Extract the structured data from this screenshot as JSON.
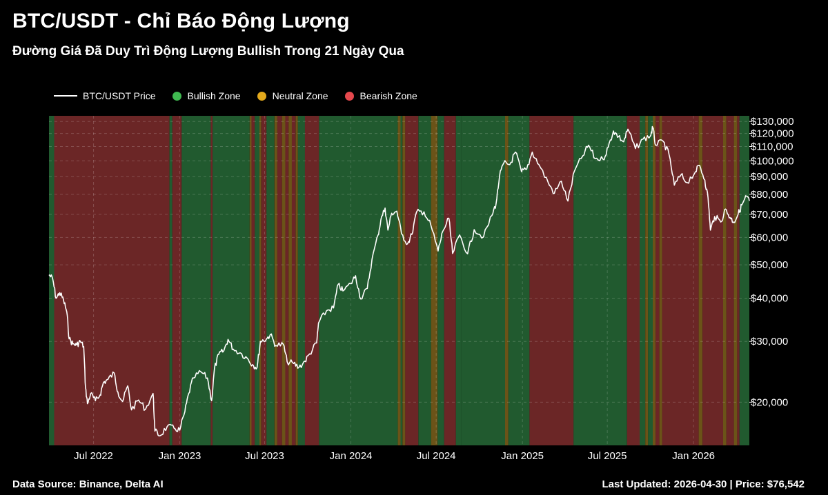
{
  "header": {
    "title": "BTC/USDT - Chỉ Báo Động Lượng",
    "subtitle": "Đường Giá Đã Duy Trì Động Lượng Bullish Trong 21 Ngày Qua"
  },
  "footer": {
    "source": "Data Source: Binance, Delta AI",
    "updated": "Last Updated: 2026-04-30 | Price: $76,542"
  },
  "chart_data": {
    "type": "line",
    "title": "BTC/USDT - Chỉ Báo Động Lượng",
    "subtitle": "Đường Giá Đã Duy Trì Động Lượng Bullish Trong 21 Ngày Qua",
    "y_scale": "log",
    "ylim": [
      15000,
      135000
    ],
    "xlim": [
      "2022-03-28",
      "2026-04-30"
    ],
    "grid": true,
    "legend_position": "top-left",
    "legend": [
      {
        "label": "BTC/USDT Price",
        "kind": "line",
        "color": "#ffffff"
      },
      {
        "label": "Bullish Zone",
        "kind": "dot",
        "color": "#3fb950"
      },
      {
        "label": "Neutral Zone",
        "kind": "dot",
        "color": "#e3a91c"
      },
      {
        "label": "Bearish Zone",
        "kind": "dot",
        "color": "#e5484d"
      }
    ],
    "zone_colors": {
      "bullish": "#215a2f",
      "neutral": "#6b5318",
      "bearish": "#6b2626"
    },
    "x_ticks": [
      {
        "date": "2022-07-01",
        "label": "Jul 2022"
      },
      {
        "date": "2023-01-01",
        "label": "Jan 2023"
      },
      {
        "date": "2023-07-01",
        "label": "Jul 2023"
      },
      {
        "date": "2024-01-01",
        "label": "Jan 2024"
      },
      {
        "date": "2024-07-01",
        "label": "Jul 2024"
      },
      {
        "date": "2025-01-01",
        "label": "Jan 2025"
      },
      {
        "date": "2025-07-01",
        "label": "Jul 2025"
      },
      {
        "date": "2026-01-01",
        "label": "Jan 2026"
      }
    ],
    "y_ticks": [
      {
        "value": 20000,
        "label": "$20,000"
      },
      {
        "value": 30000,
        "label": "$30,000"
      },
      {
        "value": 40000,
        "label": "$40,000"
      },
      {
        "value": 50000,
        "label": "$50,000"
      },
      {
        "value": 60000,
        "label": "$60,000"
      },
      {
        "value": 70000,
        "label": "$70,000"
      },
      {
        "value": 80000,
        "label": "$80,000"
      },
      {
        "value": 90000,
        "label": "$90,000"
      },
      {
        "value": 100000,
        "label": "$100,000"
      },
      {
        "value": 110000,
        "label": "$110,000"
      },
      {
        "value": 120000,
        "label": "$120,000"
      },
      {
        "value": 130000,
        "label": "$130,000"
      }
    ],
    "zones": [
      {
        "start": "2022-03-28",
        "end": "2022-04-08",
        "zone": "bullish"
      },
      {
        "start": "2022-04-08",
        "end": "2022-12-10",
        "zone": "bearish"
      },
      {
        "start": "2022-12-10",
        "end": "2022-12-16",
        "zone": "bullish"
      },
      {
        "start": "2022-12-16",
        "end": "2023-01-05",
        "zone": "bearish"
      },
      {
        "start": "2023-01-05",
        "end": "2023-03-08",
        "zone": "bullish"
      },
      {
        "start": "2023-03-08",
        "end": "2023-03-12",
        "zone": "bearish"
      },
      {
        "start": "2023-03-12",
        "end": "2023-05-30",
        "zone": "bullish"
      },
      {
        "start": "2023-05-30",
        "end": "2023-06-03",
        "zone": "neutral"
      },
      {
        "start": "2023-06-03",
        "end": "2023-06-10",
        "zone": "bearish"
      },
      {
        "start": "2023-06-10",
        "end": "2023-06-20",
        "zone": "bullish"
      },
      {
        "start": "2023-06-20",
        "end": "2023-06-24",
        "zone": "neutral"
      },
      {
        "start": "2023-06-24",
        "end": "2023-07-05",
        "zone": "bearish"
      },
      {
        "start": "2023-07-05",
        "end": "2023-07-22",
        "zone": "bullish"
      },
      {
        "start": "2023-07-22",
        "end": "2023-07-28",
        "zone": "neutral"
      },
      {
        "start": "2023-07-28",
        "end": "2023-08-07",
        "zone": "bearish"
      },
      {
        "start": "2023-08-07",
        "end": "2023-08-14",
        "zone": "neutral"
      },
      {
        "start": "2023-08-14",
        "end": "2023-08-21",
        "zone": "bearish"
      },
      {
        "start": "2023-08-21",
        "end": "2023-08-28",
        "zone": "neutral"
      },
      {
        "start": "2023-08-28",
        "end": "2023-09-05",
        "zone": "bearish"
      },
      {
        "start": "2023-09-05",
        "end": "2023-09-10",
        "zone": "neutral"
      },
      {
        "start": "2023-09-10",
        "end": "2023-09-25",
        "zone": "bullish"
      },
      {
        "start": "2023-09-25",
        "end": "2023-10-25",
        "zone": "bearish"
      },
      {
        "start": "2023-10-25",
        "end": "2024-04-10",
        "zone": "bullish"
      },
      {
        "start": "2024-04-10",
        "end": "2024-04-16",
        "zone": "neutral"
      },
      {
        "start": "2024-04-16",
        "end": "2024-04-20",
        "zone": "bullish"
      },
      {
        "start": "2024-04-20",
        "end": "2024-04-26",
        "zone": "neutral"
      },
      {
        "start": "2024-04-26",
        "end": "2024-05-24",
        "zone": "bearish"
      },
      {
        "start": "2024-05-24",
        "end": "2024-06-20",
        "zone": "bullish"
      },
      {
        "start": "2024-06-20",
        "end": "2024-07-04",
        "zone": "neutral"
      },
      {
        "start": "2024-07-04",
        "end": "2024-07-18",
        "zone": "bullish"
      },
      {
        "start": "2024-07-18",
        "end": "2024-08-12",
        "zone": "bearish"
      },
      {
        "start": "2024-08-12",
        "end": "2024-08-24",
        "zone": "bullish"
      },
      {
        "start": "2024-08-24",
        "end": "2024-11-25",
        "zone": "bullish"
      },
      {
        "start": "2024-11-25",
        "end": "2024-12-02",
        "zone": "neutral"
      },
      {
        "start": "2024-12-02",
        "end": "2025-01-16",
        "zone": "bullish"
      },
      {
        "start": "2025-01-16",
        "end": "2025-04-20",
        "zone": "bearish"
      },
      {
        "start": "2025-04-20",
        "end": "2025-08-12",
        "zone": "bullish"
      },
      {
        "start": "2025-08-12",
        "end": "2025-09-08",
        "zone": "bearish"
      },
      {
        "start": "2025-09-08",
        "end": "2025-09-20",
        "zone": "bullish"
      },
      {
        "start": "2025-09-20",
        "end": "2025-09-26",
        "zone": "neutral"
      },
      {
        "start": "2025-09-26",
        "end": "2025-10-06",
        "zone": "bullish"
      },
      {
        "start": "2025-10-06",
        "end": "2025-10-12",
        "zone": "neutral"
      },
      {
        "start": "2025-10-12",
        "end": "2025-10-20",
        "zone": "bearish"
      },
      {
        "start": "2025-10-20",
        "end": "2025-10-26",
        "zone": "neutral"
      },
      {
        "start": "2025-10-26",
        "end": "2026-01-12",
        "zone": "bearish"
      },
      {
        "start": "2026-01-12",
        "end": "2026-01-20",
        "zone": "neutral"
      },
      {
        "start": "2026-01-20",
        "end": "2026-03-05",
        "zone": "bearish"
      },
      {
        "start": "2026-03-05",
        "end": "2026-03-12",
        "zone": "neutral"
      },
      {
        "start": "2026-03-12",
        "end": "2026-03-28",
        "zone": "bearish"
      },
      {
        "start": "2026-03-28",
        "end": "2026-04-04",
        "zone": "neutral"
      },
      {
        "start": "2026-04-04",
        "end": "2026-04-09",
        "zone": "bearish"
      },
      {
        "start": "2026-04-09",
        "end": "2026-04-30",
        "zone": "bullish"
      }
    ],
    "series": [
      {
        "name": "BTC/USDT Price",
        "color": "#ffffff",
        "points": [
          [
            "2022-03-28",
            46800
          ],
          [
            "2022-04-05",
            45500
          ],
          [
            "2022-04-12",
            40000
          ],
          [
            "2022-04-20",
            41500
          ],
          [
            "2022-04-28",
            39500
          ],
          [
            "2022-05-05",
            36500
          ],
          [
            "2022-05-10",
            30500
          ],
          [
            "2022-05-18",
            29500
          ],
          [
            "2022-05-26",
            29300
          ],
          [
            "2022-06-03",
            30000
          ],
          [
            "2022-06-10",
            29000
          ],
          [
            "2022-06-14",
            22000
          ],
          [
            "2022-06-18",
            19800
          ],
          [
            "2022-06-25",
            21200
          ],
          [
            "2022-07-05",
            20200
          ],
          [
            "2022-07-15",
            21000
          ],
          [
            "2022-07-22",
            22800
          ],
          [
            "2022-08-01",
            23300
          ],
          [
            "2022-08-14",
            24300
          ],
          [
            "2022-08-22",
            21400
          ],
          [
            "2022-09-01",
            20100
          ],
          [
            "2022-09-12",
            22300
          ],
          [
            "2022-09-20",
            19000
          ],
          [
            "2022-10-05",
            20300
          ],
          [
            "2022-10-20",
            19100
          ],
          [
            "2022-11-05",
            21200
          ],
          [
            "2022-11-09",
            16500
          ],
          [
            "2022-11-20",
            16000
          ],
          [
            "2022-12-05",
            17000
          ],
          [
            "2022-12-20",
            16800
          ],
          [
            "2023-01-01",
            16600
          ],
          [
            "2023-01-12",
            18800
          ],
          [
            "2023-01-20",
            21200
          ],
          [
            "2023-01-30",
            23500
          ],
          [
            "2023-02-15",
            24500
          ],
          [
            "2023-03-01",
            23500
          ],
          [
            "2023-03-10",
            20200
          ],
          [
            "2023-03-16",
            25000
          ],
          [
            "2023-03-25",
            27500
          ],
          [
            "2023-04-05",
            28200
          ],
          [
            "2023-04-14",
            30400
          ],
          [
            "2023-04-25",
            28500
          ],
          [
            "2023-05-10",
            27800
          ],
          [
            "2023-05-25",
            26800
          ],
          [
            "2023-06-05",
            25700
          ],
          [
            "2023-06-15",
            25200
          ],
          [
            "2023-06-22",
            30000
          ],
          [
            "2023-07-05",
            30500
          ],
          [
            "2023-07-13",
            31400
          ],
          [
            "2023-07-25",
            29200
          ],
          [
            "2023-08-10",
            29400
          ],
          [
            "2023-08-18",
            26200
          ],
          [
            "2023-09-01",
            25900
          ],
          [
            "2023-09-12",
            25200
          ],
          [
            "2023-09-25",
            26300
          ],
          [
            "2023-10-05",
            27600
          ],
          [
            "2023-10-20",
            29700
          ],
          [
            "2023-10-24",
            33900
          ],
          [
            "2023-11-10",
            36800
          ],
          [
            "2023-11-25",
            37500
          ],
          [
            "2023-12-05",
            43900
          ],
          [
            "2023-12-15",
            42000
          ],
          [
            "2024-01-01",
            44100
          ],
          [
            "2024-01-11",
            46500
          ],
          [
            "2024-01-22",
            39800
          ],
          [
            "2024-02-05",
            42700
          ],
          [
            "2024-02-15",
            51800
          ],
          [
            "2024-02-28",
            61000
          ],
          [
            "2024-03-05",
            67500
          ],
          [
            "2024-03-14",
            73000
          ],
          [
            "2024-03-20",
            63000
          ],
          [
            "2024-03-28",
            70500
          ],
          [
            "2024-04-08",
            71500
          ],
          [
            "2024-04-18",
            61500
          ],
          [
            "2024-05-01",
            57500
          ],
          [
            "2024-05-10",
            61200
          ],
          [
            "2024-05-20",
            71000
          ],
          [
            "2024-06-05",
            71200
          ],
          [
            "2024-06-20",
            64800
          ],
          [
            "2024-07-05",
            54800
          ],
          [
            "2024-07-15",
            62500
          ],
          [
            "2024-07-28",
            68200
          ],
          [
            "2024-08-05",
            53900
          ],
          [
            "2024-08-20",
            61000
          ],
          [
            "2024-09-06",
            53800
          ],
          [
            "2024-09-20",
            63200
          ],
          [
            "2024-10-10",
            60200
          ],
          [
            "2024-10-28",
            69500
          ],
          [
            "2024-11-06",
            75500
          ],
          [
            "2024-11-13",
            90000
          ],
          [
            "2024-11-22",
            98500
          ],
          [
            "2024-12-05",
            97500
          ],
          [
            "2024-12-17",
            106000
          ],
          [
            "2024-12-30",
            93000
          ],
          [
            "2025-01-10",
            94500
          ],
          [
            "2025-01-22",
            106000
          ],
          [
            "2025-02-05",
            97500
          ],
          [
            "2025-02-25",
            86500
          ],
          [
            "2025-03-10",
            80500
          ],
          [
            "2025-03-25",
            87300
          ],
          [
            "2025-04-08",
            76500
          ],
          [
            "2025-04-22",
            93500
          ],
          [
            "2025-05-10",
            103500
          ],
          [
            "2025-05-22",
            111000
          ],
          [
            "2025-06-05",
            101500
          ],
          [
            "2025-06-22",
            101000
          ],
          [
            "2025-07-03",
            109500
          ],
          [
            "2025-07-14",
            122000
          ],
          [
            "2025-07-25",
            117500
          ],
          [
            "2025-08-05",
            113500
          ],
          [
            "2025-08-14",
            123500
          ],
          [
            "2025-08-30",
            108500
          ],
          [
            "2025-09-15",
            115500
          ],
          [
            "2025-10-01",
            118000
          ],
          [
            "2025-10-06",
            125000
          ],
          [
            "2025-10-12",
            111000
          ],
          [
            "2025-10-28",
            114000
          ],
          [
            "2025-11-10",
            104000
          ],
          [
            "2025-11-21",
            85000
          ],
          [
            "2025-12-05",
            91000
          ],
          [
            "2025-12-18",
            86500
          ],
          [
            "2026-01-05",
            93000
          ],
          [
            "2026-01-14",
            97000
          ],
          [
            "2026-01-25",
            88000
          ],
          [
            "2026-02-01",
            78000
          ],
          [
            "2026-02-06",
            63000
          ],
          [
            "2026-02-15",
            69000
          ],
          [
            "2026-02-28",
            66500
          ],
          [
            "2026-03-10",
            72500
          ],
          [
            "2026-03-20",
            68500
          ],
          [
            "2026-03-28",
            66500
          ],
          [
            "2026-04-06",
            70000
          ],
          [
            "2026-04-14",
            74500
          ],
          [
            "2026-04-24",
            79000
          ],
          [
            "2026-04-30",
            76542
          ]
        ]
      }
    ]
  }
}
